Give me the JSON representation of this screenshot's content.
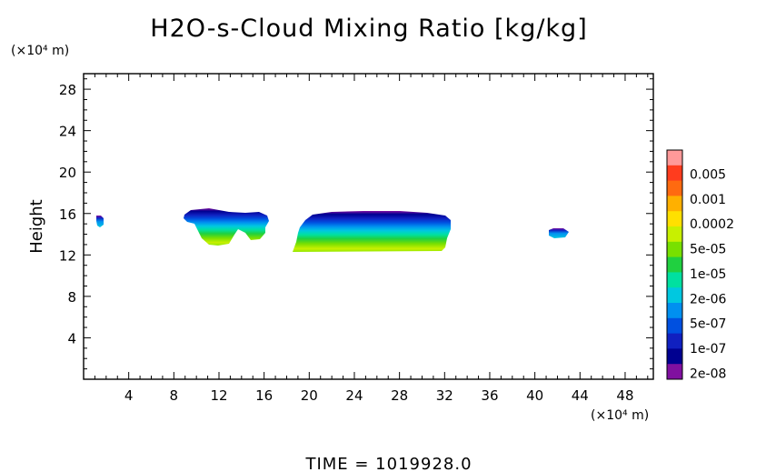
{
  "chart_data": {
    "type": "heatmap",
    "title": "H2O-s-Cloud Mixing Ratio [kg/kg]",
    "ylabel": "Height",
    "xlabel": "",
    "x_unit": "(×10⁴ m)",
    "y_unit": "(×10⁴ m)",
    "xlim": [
      0,
      50.5
    ],
    "ylim": [
      0,
      29.5
    ],
    "x_ticks": [
      4,
      8,
      12,
      16,
      20,
      24,
      28,
      32,
      36,
      40,
      44,
      48
    ],
    "y_ticks": [
      4,
      8,
      12,
      16,
      20,
      24,
      28
    ],
    "grid": false,
    "colorbar": {
      "labels": [
        "0.005",
        "0.001",
        "0.0002",
        "5e-05",
        "1e-05",
        "2e-06",
        "5e-07",
        "1e-07",
        "2e-08"
      ],
      "colors": [
        "#ff9999",
        "#ff3c1e",
        "#ff6a10",
        "#ffb000",
        "#ffe000",
        "#c8f000",
        "#78e000",
        "#20d040",
        "#00e0a0",
        "#00c8e0",
        "#0090f0",
        "#0050e0",
        "#1020c0",
        "#000090",
        "#8010a0"
      ]
    },
    "cloud_regions": [
      {
        "x": [
          1.0,
          2.0
        ],
        "y": [
          14.8,
          16.2
        ],
        "max_level": "2e-06"
      },
      {
        "x": [
          8.9,
          16.8
        ],
        "y": [
          12.8,
          16.6
        ],
        "max_level": "5e-05"
      },
      {
        "x": [
          18.5,
          32.5
        ],
        "y": [
          12.5,
          16.5
        ],
        "max_level": "5e-05"
      },
      {
        "x": [
          41.0,
          43.0
        ],
        "y": [
          13.8,
          14.8
        ],
        "max_level": "5e-06"
      }
    ]
  },
  "footer": {
    "time_label": "TIME = 1019928.0"
  }
}
